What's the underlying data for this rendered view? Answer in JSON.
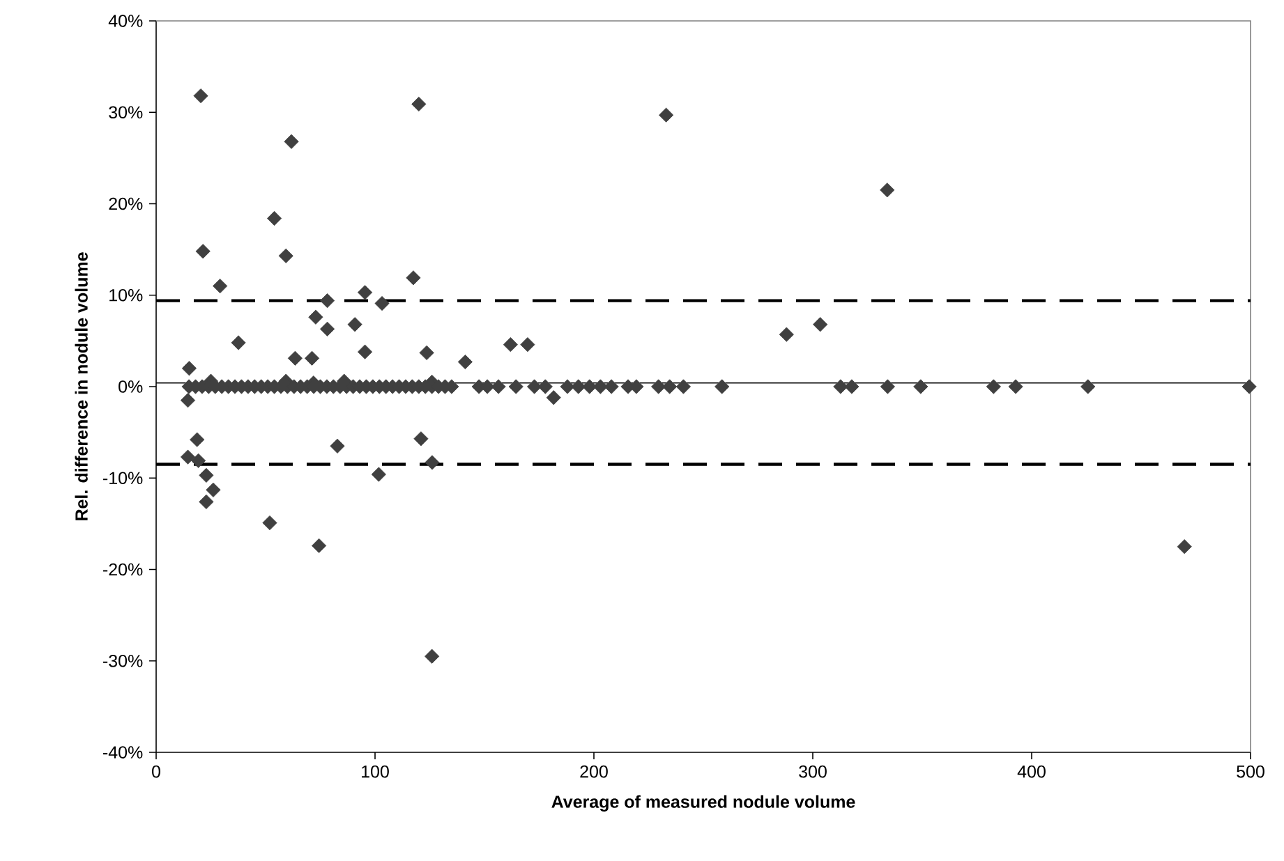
{
  "chart_data": {
    "type": "scatter",
    "xlabel": "Average of measured nodule volume",
    "ylabel": "Rel. difference in nodule volume",
    "x": [
      20.4,
      61.8,
      120,
      54,
      21.4,
      59.3,
      29.2,
      78.2,
      95.4,
      103.2,
      117.5,
      72.9,
      78.2,
      90.8,
      37.6,
      63.5,
      71.2,
      95.4,
      15.1,
      25,
      59.3,
      71.9,
      85.9,
      14.5,
      18.7,
      14.5,
      19.3,
      22.9,
      26.1,
      22.9,
      82.8,
      101.7,
      121,
      51.9,
      74.4,
      123.6,
      126,
      141.2,
      161.9,
      169.7,
      288,
      303.4,
      126.1,
      469.8,
      181.6,
      233,
      334,
      126,
      15,
      18,
      21,
      24,
      27,
      30,
      33,
      36,
      39,
      42,
      45,
      48,
      51,
      54,
      57,
      60,
      63,
      66,
      69,
      72,
      75,
      78,
      81,
      84,
      87,
      90,
      93,
      96,
      99,
      102,
      105,
      108,
      111,
      114,
      117,
      120,
      123,
      126,
      129,
      132,
      135,
      147.5,
      151.3,
      156.4,
      164.4,
      172.8,
      177.8,
      187.9,
      192.9,
      198,
      203,
      208,
      215.6,
      219.4,
      229.5,
      234.6,
      240.9,
      258.5,
      312.7,
      317.8,
      334.2,
      349.3,
      382.6,
      392.7,
      425.7,
      499.4
    ],
    "values": [
      31.8,
      26.8,
      30.9,
      18.4,
      14.8,
      14.3,
      11,
      9.4,
      10.3,
      9.1,
      11.9,
      7.6,
      6.3,
      6.8,
      4.8,
      3.1,
      3.1,
      3.8,
      2,
      0.6,
      0.6,
      0.4,
      0.6,
      -1.5,
      -5.8,
      -7.7,
      -8.1,
      -9.7,
      -11.3,
      -12.6,
      -6.5,
      -9.6,
      -5.7,
      -14.9,
      -17.4,
      3.7,
      0.5,
      2.7,
      4.6,
      4.6,
      5.7,
      6.8,
      -8.3,
      -17.5,
      -1.2,
      29.7,
      21.5,
      -29.5,
      0,
      0,
      0,
      0,
      0,
      0,
      0,
      0,
      0,
      0,
      0,
      0,
      0,
      0,
      0,
      0,
      0,
      0,
      0,
      0,
      0,
      0,
      0,
      0,
      0,
      0,
      0,
      0,
      0,
      0,
      0,
      0,
      0,
      0,
      0,
      0,
      0,
      0,
      0,
      0,
      0,
      0,
      0,
      0,
      0,
      0,
      0,
      0,
      0,
      0,
      0,
      0,
      0,
      0,
      0,
      0,
      0,
      0,
      0,
      0,
      0,
      0,
      0,
      0,
      0,
      0
    ],
    "color": "#404040",
    "marker": "diamond",
    "grid": false,
    "xlim": [
      0,
      500
    ],
    "xticks": [
      0,
      100,
      200,
      300,
      400,
      500
    ],
    "ylim": [
      -40,
      40
    ],
    "yticks": [
      {
        "value": -40,
        "label": "-40%"
      },
      {
        "value": -30,
        "label": "-30%"
      },
      {
        "value": -20,
        "label": "-20%"
      },
      {
        "value": -10,
        "label": "-10%"
      },
      {
        "value": 0,
        "label": "0%"
      },
      {
        "value": 10,
        "label": "10%"
      },
      {
        "value": 20,
        "label": "20%"
      },
      {
        "value": 30,
        "label": "30%"
      },
      {
        "value": 40,
        "label": "40%"
      }
    ],
    "ref_lines": [
      {
        "axis": "y",
        "value": 0.4,
        "line_style": "solid",
        "color": "#000000"
      },
      {
        "axis": "y",
        "value": 9.4,
        "line_style": "dashed",
        "color": "#000000"
      },
      {
        "axis": "y",
        "value": -8.5,
        "line_style": "dashed",
        "color": "#000000"
      }
    ]
  }
}
